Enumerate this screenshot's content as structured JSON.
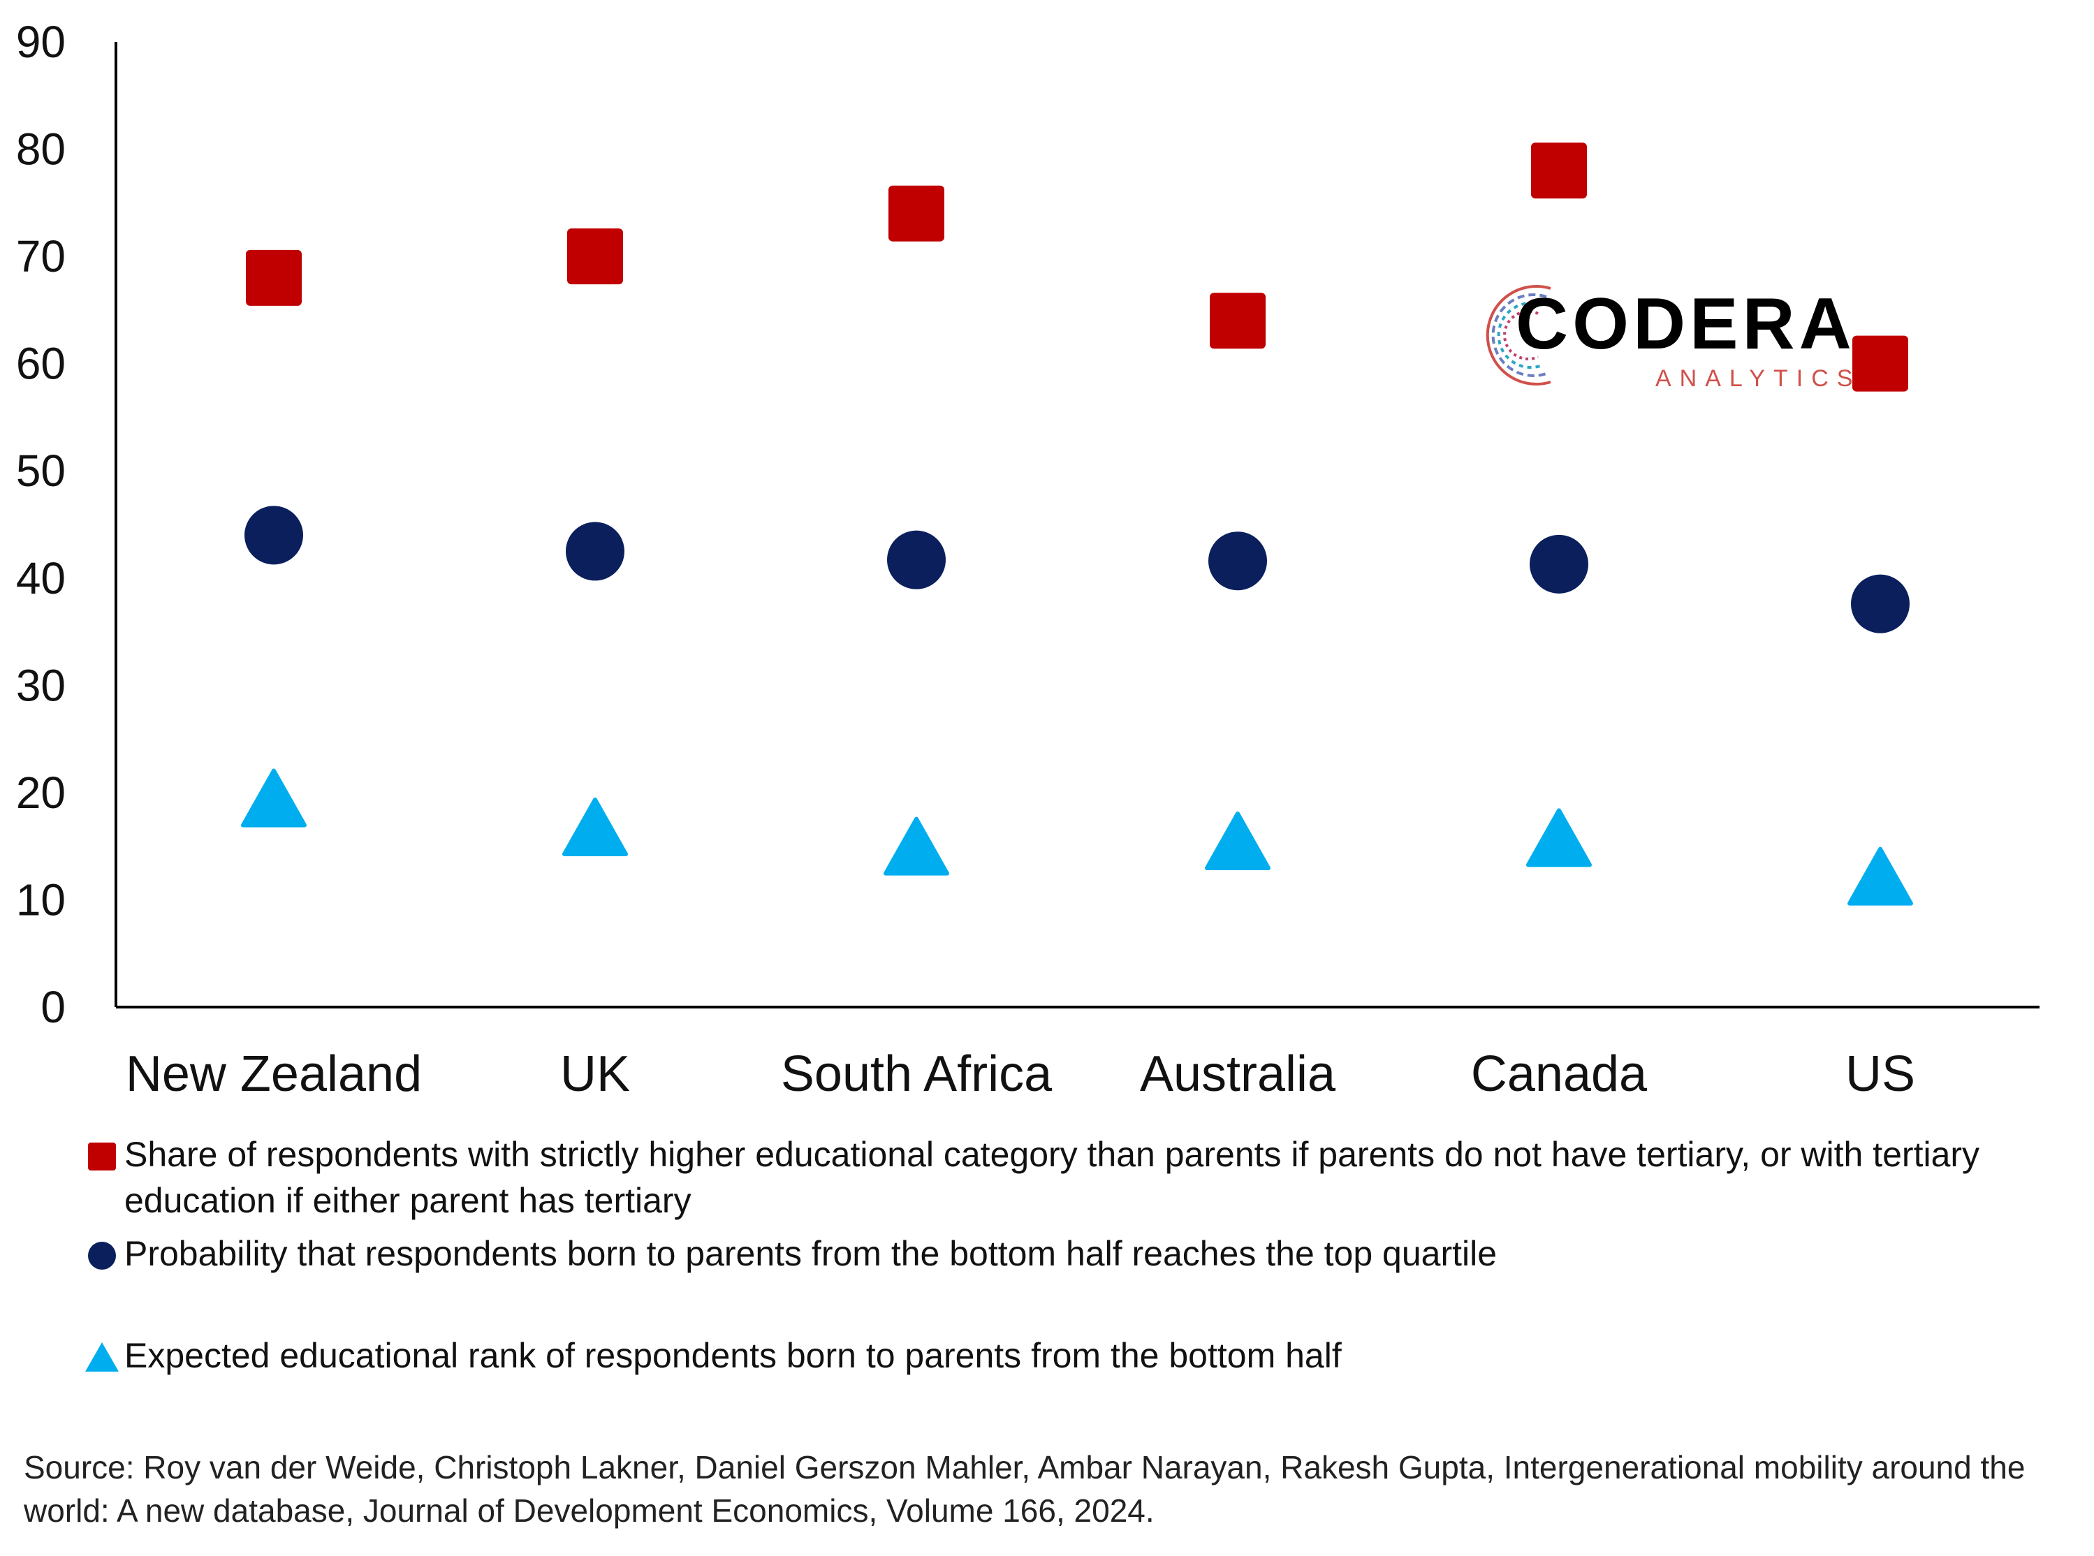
{
  "chart_data": {
    "type": "scatter",
    "categories": [
      "New Zealand",
      "UK",
      "South Africa",
      "Australia",
      "Canada",
      "US"
    ],
    "ylim": [
      0,
      90
    ],
    "yticks": [
      0,
      10,
      20,
      30,
      40,
      50,
      60,
      70,
      80,
      90
    ],
    "grid": false,
    "legend_position": "bottom",
    "series": [
      {
        "name": "Share of respondents with strictly higher educational category than parents if parents do not have tertiary, or with tertiary education if either parent has tertiary",
        "marker": "square",
        "color": "#c00000",
        "values": [
          68,
          70,
          74,
          64,
          78,
          60
        ]
      },
      {
        "name": "Probability that respondents born to parents from the bottom half reaches the top quartile",
        "marker": "circle",
        "color": "#0a1f5c",
        "values": [
          44,
          42.5,
          41.7,
          41.6,
          41.3,
          37.6
        ]
      },
      {
        "name": "Expected educational rank of respondents born to parents from the bottom half",
        "marker": "triangle",
        "color": "#00aeef",
        "values": [
          19.5,
          16.8,
          15,
          15.5,
          15.8,
          12.2
        ]
      }
    ]
  },
  "source_text": "Source: Roy van der Weide, Christoph Lakner, Daniel Gerszon Mahler, Ambar Narayan, Rakesh Gupta, Intergenerational mobility around the world: A new database, Journal of Development Economics, Volume 166, 2024.",
  "logo": {
    "name": "CODERA",
    "subtitle": "ANALYTICS"
  }
}
